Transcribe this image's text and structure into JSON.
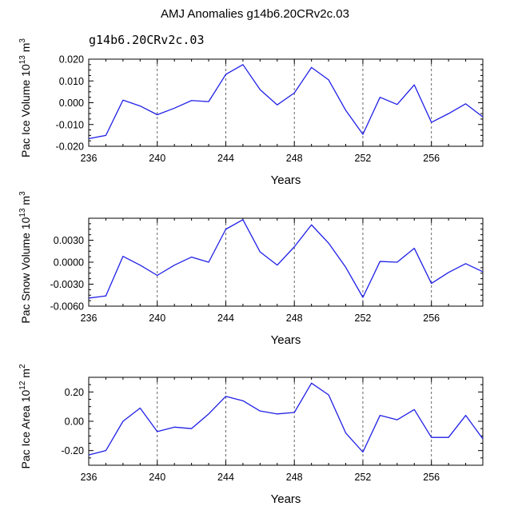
{
  "figure": {
    "title": "AMJ Anomalies g14b6.20CRv2c.03",
    "subtitle": "g14b6.20CRv2c.03",
    "line_color": "#1f1fe6",
    "axis_color": "#000000",
    "vline_color": "#555555"
  },
  "chart_data": [
    {
      "type": "line",
      "name": "ice-volume",
      "ylabel": {
        "main": "Pac Ice Volume 10",
        "exp": "13",
        "unit": " m",
        "unit_exp": "3"
      },
      "xlabel": "Years",
      "xlim": [
        236,
        259
      ],
      "ylim": [
        -0.02,
        0.02
      ],
      "xticks": [
        236,
        240,
        244,
        248,
        252,
        256
      ],
      "yticks": [
        -0.02,
        -0.01,
        0.0,
        0.01,
        0.02
      ],
      "ytick_labels": [
        "-0.020",
        "-0.010",
        "0.000",
        "0.010",
        "0.020"
      ],
      "vlines": [
        240,
        244,
        248,
        252,
        256
      ],
      "x": [
        236,
        237,
        238,
        239,
        240,
        241,
        242,
        243,
        244,
        245,
        246,
        247,
        248,
        249,
        250,
        251,
        252,
        253,
        254,
        255,
        256,
        257,
        258,
        259
      ],
      "values": [
        -0.0165,
        -0.015,
        0.0012,
        -0.0015,
        -0.0055,
        -0.0025,
        0.001,
        0.0005,
        0.013,
        0.0175,
        0.006,
        -0.001,
        0.0045,
        0.0162,
        0.0105,
        -0.0035,
        -0.0145,
        0.0025,
        -0.0008,
        0.0082,
        -0.009,
        -0.005,
        -0.0005,
        -0.0065
      ]
    },
    {
      "type": "line",
      "name": "snow-volume",
      "ylabel": {
        "main": "Pac Snow Volume 10",
        "exp": "13",
        "unit": " m",
        "unit_exp": "3"
      },
      "xlabel": "Years",
      "xlim": [
        236,
        259
      ],
      "ylim": [
        -0.006,
        0.006
      ],
      "xticks": [
        236,
        240,
        244,
        248,
        252,
        256
      ],
      "yticks": [
        -0.006,
        -0.003,
        0.0,
        0.003
      ],
      "ytick_labels": [
        "-0.0060",
        "-0.0030",
        "0.0000",
        "0.0030"
      ],
      "vlines": [
        240,
        244,
        248,
        252,
        256
      ],
      "x": [
        236,
        237,
        238,
        239,
        240,
        241,
        242,
        243,
        244,
        245,
        246,
        247,
        248,
        249,
        250,
        251,
        252,
        253,
        254,
        255,
        256,
        257,
        258,
        259
      ],
      "values": [
        -0.0049,
        -0.0046,
        0.0008,
        -0.0004,
        -0.0018,
        -0.0004,
        0.0007,
        0.0,
        0.0045,
        0.0058,
        0.0014,
        -0.0004,
        0.0021,
        0.0051,
        0.0026,
        -0.0007,
        -0.0048,
        0.0001,
        0.0,
        0.0019,
        -0.0029,
        -0.0014,
        -0.0002,
        -0.0013
      ]
    },
    {
      "type": "line",
      "name": "ice-area",
      "ylabel": {
        "main": "Pac Ice Area 10",
        "exp": "12",
        "unit": " m",
        "unit_exp": "2"
      },
      "xlabel": "Years",
      "xlim": [
        236,
        259
      ],
      "ylim": [
        -0.3,
        0.3
      ],
      "xticks": [
        236,
        240,
        244,
        248,
        252,
        256
      ],
      "yticks": [
        -0.2,
        0.0,
        0.2
      ],
      "ytick_labels": [
        "-0.20",
        "0.00",
        "0.20"
      ],
      "vlines": [
        240,
        244,
        248,
        252,
        256
      ],
      "x": [
        236,
        237,
        238,
        239,
        240,
        241,
        242,
        243,
        244,
        245,
        246,
        247,
        248,
        249,
        250,
        251,
        252,
        253,
        254,
        255,
        256,
        257,
        258,
        259
      ],
      "values": [
        -0.23,
        -0.2,
        0.0,
        0.09,
        -0.07,
        -0.04,
        -0.05,
        0.05,
        0.17,
        0.14,
        0.07,
        0.05,
        0.06,
        0.26,
        0.18,
        -0.08,
        -0.21,
        0.04,
        0.01,
        0.08,
        -0.11,
        -0.11,
        0.04,
        -0.12
      ]
    }
  ]
}
